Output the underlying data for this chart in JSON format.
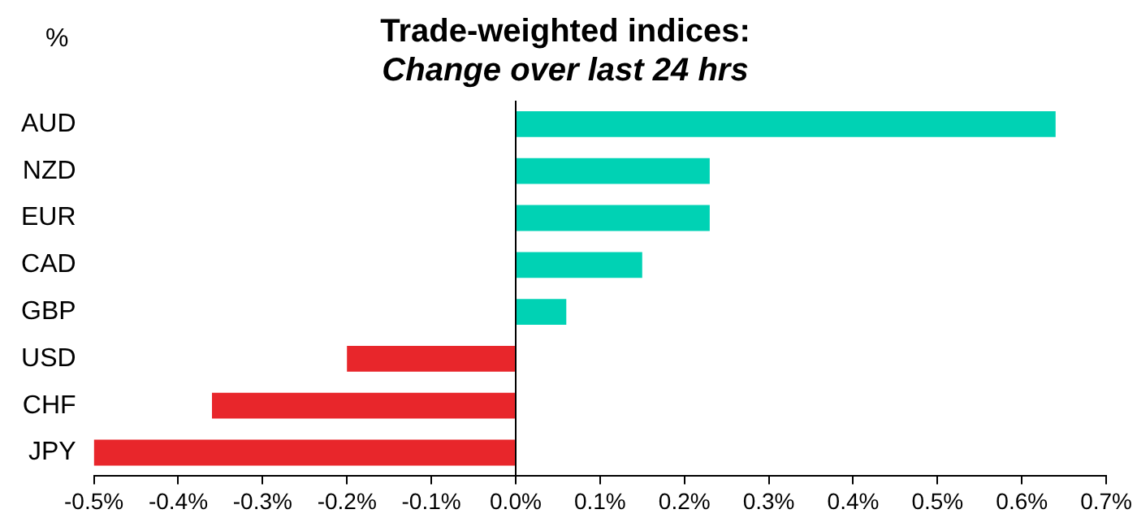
{
  "chart_data": {
    "type": "bar",
    "orientation": "horizontal",
    "title": "Trade-weighted indices:",
    "subtitle": "Change over last 24 hrs",
    "annotations": [
      "%"
    ],
    "categories": [
      "AUD",
      "NZD",
      "EUR",
      "CAD",
      "GBP",
      "USD",
      "CHF",
      "JPY"
    ],
    "values": [
      0.64,
      0.23,
      0.23,
      0.15,
      0.06,
      -0.2,
      -0.36,
      -0.5
    ],
    "colors": [
      "#00d2b4",
      "#00d2b4",
      "#00d2b4",
      "#00d2b4",
      "#00d2b4",
      "#e8262b",
      "#e8262b",
      "#e8262b"
    ],
    "xlim": [
      -0.5,
      0.7
    ],
    "xticks": [
      {
        "value": -0.5,
        "label": "-0.5%"
      },
      {
        "value": -0.4,
        "label": "-0.4%"
      },
      {
        "value": -0.3,
        "label": "-0.3%"
      },
      {
        "value": -0.2,
        "label": "-0.2%"
      },
      {
        "value": -0.1,
        "label": "-0.1%"
      },
      {
        "value": 0,
        "label": "0.0%"
      },
      {
        "value": 0.1,
        "label": "0.1%"
      },
      {
        "value": 0.2,
        "label": "0.2%"
      },
      {
        "value": 0.3,
        "label": "0.3%"
      },
      {
        "value": 0.4,
        "label": "0.4%"
      },
      {
        "value": 0.5,
        "label": "0.5%"
      },
      {
        "value": 0.6,
        "label": "0.6%"
      },
      {
        "value": 0.7,
        "label": "0.7%"
      }
    ],
    "legend": false
  }
}
